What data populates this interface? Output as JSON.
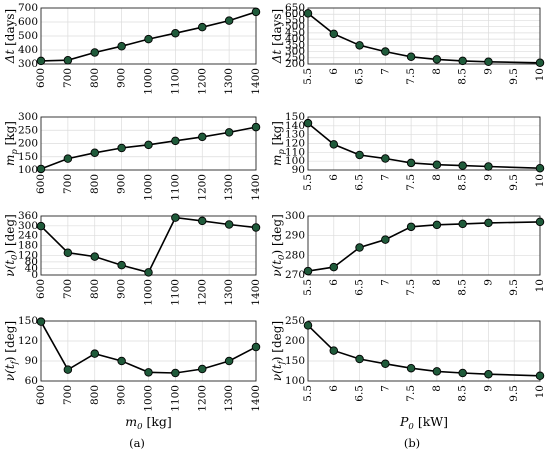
{
  "panel_labels": {
    "left": "(a)",
    "right": "(b)"
  },
  "colors": {
    "marker_fill": "#1f5a3a",
    "line": "#000000",
    "grid": "#dcdcdc"
  },
  "chart_data": [
    {
      "id": "a1",
      "type": "line",
      "column": "left",
      "row": 0,
      "ylabel_sym": "Δt",
      "ylabel_unit": "[days]",
      "xlabel": "",
      "x": [
        600,
        700,
        800,
        900,
        1000,
        1100,
        1200,
        1300,
        1400
      ],
      "y": [
        322,
        327,
        382,
        427,
        478,
        520,
        563,
        610,
        672
      ],
      "xlim": [
        600,
        1400
      ],
      "ylim": [
        300,
        700
      ],
      "xticks": [
        600,
        700,
        800,
        900,
        1000,
        1100,
        1200,
        1300,
        1400
      ],
      "yticks": [
        300,
        400,
        500,
        600,
        700
      ],
      "grid": true
    },
    {
      "id": "a2",
      "type": "line",
      "column": "left",
      "row": 1,
      "ylabel_sym": "m",
      "ylabel_sub": "p",
      "ylabel_unit": "[kg]",
      "xlabel": "",
      "x": [
        600,
        700,
        800,
        900,
        1000,
        1100,
        1200,
        1300,
        1400
      ],
      "y": [
        104,
        143,
        165,
        183,
        195,
        210,
        225,
        242,
        262
      ],
      "xlim": [
        600,
        1400
      ],
      "ylim": [
        100,
        300
      ],
      "xticks": [
        600,
        700,
        800,
        900,
        1000,
        1100,
        1200,
        1300,
        1400
      ],
      "yticks": [
        100,
        150,
        200,
        250,
        300
      ],
      "grid": true
    },
    {
      "id": "a3",
      "type": "line",
      "column": "left",
      "row": 2,
      "ylabel_sym": "ν(t",
      "ylabel_sub": "0",
      "ylabel_close": ")",
      "ylabel_unit": "[deg]",
      "xlabel": "",
      "x": [
        600,
        700,
        800,
        900,
        1000,
        1100,
        1200,
        1300,
        1400
      ],
      "y": [
        298,
        136,
        112,
        60,
        16,
        350,
        330,
        308,
        290
      ],
      "xlim": [
        600,
        1400
      ],
      "ylim": [
        0,
        360
      ],
      "xticks": [
        600,
        700,
        800,
        900,
        1000,
        1100,
        1200,
        1300,
        1400
      ],
      "yticks": [
        0,
        40,
        80,
        120,
        180,
        240,
        300,
        360
      ],
      "grid": true
    },
    {
      "id": "a4",
      "type": "line",
      "column": "left",
      "row": 3,
      "ylabel_sym": "ν(t",
      "ylabel_sub": "f",
      "ylabel_close": ")",
      "ylabel_unit": "[deg]",
      "xlabel_sym": "m",
      "xlabel_sub": "0",
      "xlabel_unit": "[kg]",
      "x": [
        600,
        700,
        800,
        900,
        1000,
        1100,
        1200,
        1300,
        1400
      ],
      "y": [
        149,
        77,
        101,
        90,
        73,
        72,
        78,
        90,
        111
      ],
      "xlim": [
        600,
        1400
      ],
      "ylim": [
        60,
        150
      ],
      "xticks": [
        600,
        700,
        800,
        900,
        1000,
        1100,
        1200,
        1300,
        1400
      ],
      "yticks": [
        60,
        90,
        120,
        150
      ],
      "grid": true
    },
    {
      "id": "b1",
      "type": "line",
      "column": "right",
      "row": 0,
      "ylabel_sym": "Δt",
      "ylabel_unit": "[days]",
      "xlabel": "",
      "x": [
        5.5,
        6,
        6.5,
        7,
        7.5,
        8,
        8.5,
        9,
        10
      ],
      "y": [
        607,
        442,
        350,
        300,
        258,
        237,
        225,
        218,
        210
      ],
      "xlim": [
        5.5,
        10
      ],
      "ylim": [
        200,
        650
      ],
      "xticks": [
        5.5,
        6,
        6.5,
        7,
        7.5,
        8,
        8.5,
        9,
        9.5,
        10
      ],
      "yticks": [
        200,
        250,
        300,
        350,
        400,
        450,
        500,
        550,
        600,
        650
      ],
      "grid": true
    },
    {
      "id": "b2",
      "type": "line",
      "column": "right",
      "row": 1,
      "ylabel_sym": "m",
      "ylabel_sub": "p",
      "ylabel_unit": "[kg]",
      "xlabel": "",
      "x": [
        5.5,
        6,
        6.5,
        7,
        7.5,
        8,
        8.5,
        9,
        10
      ],
      "y": [
        143,
        119,
        107,
        103,
        98,
        96,
        95,
        94,
        92
      ],
      "xlim": [
        5.5,
        10
      ],
      "ylim": [
        90,
        150
      ],
      "xticks": [
        5.5,
        6,
        6.5,
        7,
        7.5,
        8,
        8.5,
        9,
        9.5,
        10
      ],
      "yticks": [
        90,
        100,
        110,
        120,
        130,
        140,
        150
      ],
      "grid": true
    },
    {
      "id": "b3",
      "type": "line",
      "column": "right",
      "row": 2,
      "ylabel_sym": "ν(t",
      "ylabel_sub": "0",
      "ylabel_close": ")",
      "ylabel_unit": "[deg]",
      "xlabel": "",
      "x": [
        5.5,
        6,
        6.5,
        7,
        7.5,
        8,
        8.5,
        9,
        10
      ],
      "y": [
        272,
        274,
        284,
        288,
        294.5,
        295.5,
        296,
        296.5,
        297
      ],
      "xlim": [
        5.5,
        10
      ],
      "ylim": [
        270,
        300
      ],
      "xticks": [
        5.5,
        6,
        6.5,
        7,
        7.5,
        8,
        8.5,
        9,
        9.5,
        10
      ],
      "yticks": [
        270,
        280,
        290,
        300
      ],
      "grid": true
    },
    {
      "id": "b4",
      "type": "line",
      "column": "right",
      "row": 3,
      "ylabel_sym": "ν(t",
      "ylabel_sub": "f",
      "ylabel_close": ")",
      "ylabel_unit": "[deg]",
      "xlabel_sym": "P",
      "xlabel_sub": "0",
      "xlabel_unit": "[kW]",
      "x": [
        5.5,
        6,
        6.5,
        7,
        7.5,
        8,
        8.5,
        9,
        10
      ],
      "y": [
        239,
        176,
        155,
        143,
        132,
        124,
        120,
        117,
        113
      ],
      "xlim": [
        5.5,
        10
      ],
      "ylim": [
        100,
        250
      ],
      "xticks": [
        5.5,
        6,
        6.5,
        7,
        7.5,
        8,
        8.5,
        9,
        9.5,
        10
      ],
      "yticks": [
        100,
        150,
        200,
        250
      ],
      "grid": true
    }
  ]
}
